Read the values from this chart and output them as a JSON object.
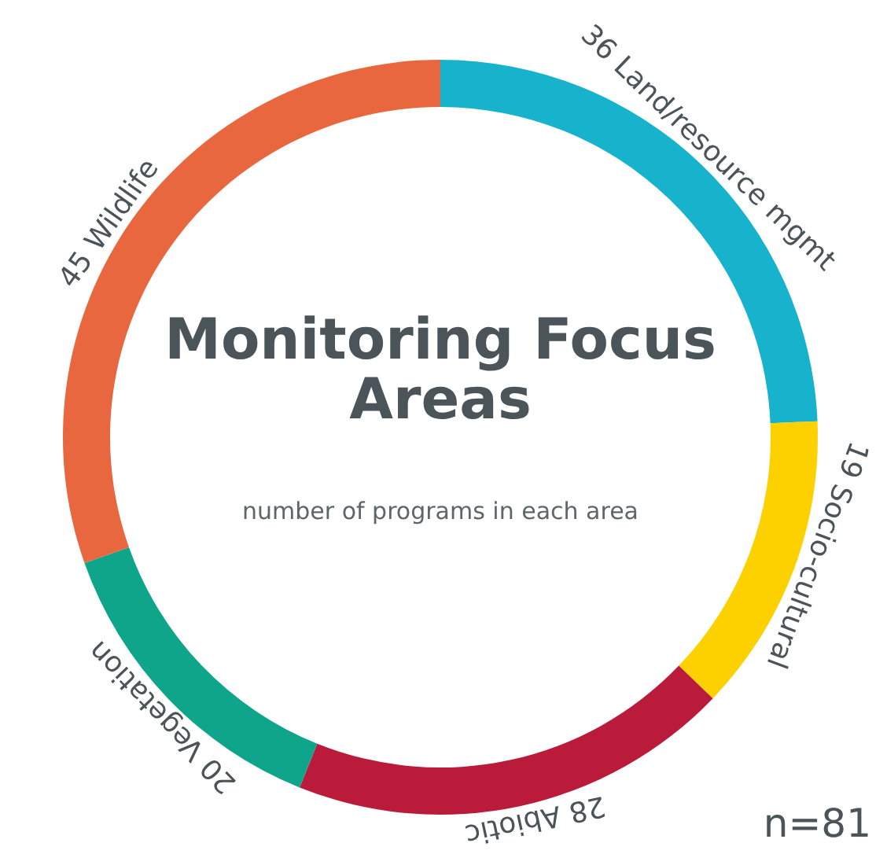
{
  "chart_data": {
    "type": "donut",
    "title": "Monitoring Focus Areas",
    "subtitle": "number of programs in each area",
    "categories": [
      "Land/resource mgmt",
      "Socio-cultural",
      "Abiotic",
      "Vegetation",
      "Wildlife"
    ],
    "values": [
      36,
      19,
      28,
      20,
      45
    ],
    "colors": [
      "#17b2cb",
      "#fdd100",
      "#bb1b3a",
      "#0fa58b",
      "#e8673f"
    ],
    "data_labels": true,
    "annotations": [
      "n=81"
    ]
  }
}
